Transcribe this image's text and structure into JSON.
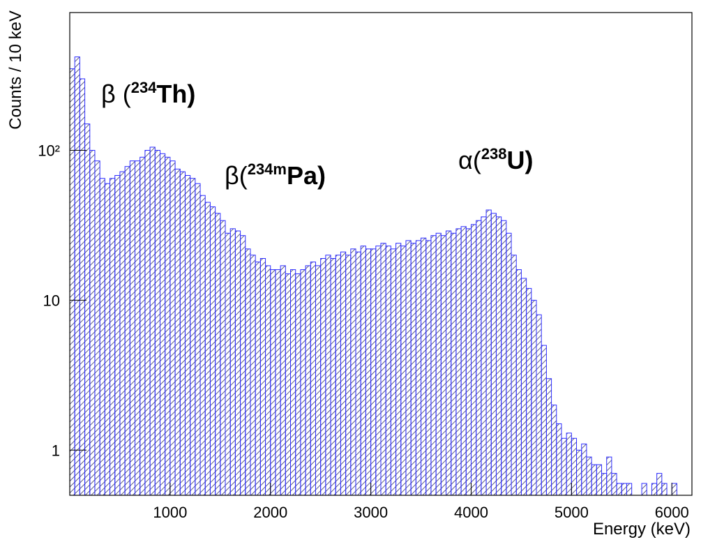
{
  "chart_data": {
    "type": "histogram",
    "xlabel": "Energy (keV)",
    "ylabel": "Counts / 10 keV",
    "log_y": true,
    "color": "#2b2bff",
    "hatch_color": "#333366",
    "xlim": [
      0,
      6200
    ],
    "ylim": [
      0.5,
      830
    ],
    "xticks": [
      1000,
      2000,
      3000,
      4000,
      5000,
      6000
    ],
    "yticks": [
      1,
      10,
      {
        "value": 100,
        "label": "10²"
      }
    ],
    "bins": [
      0,
      50,
      100,
      150,
      200,
      250,
      300,
      350,
      400,
      450,
      500,
      550,
      600,
      650,
      700,
      750,
      800,
      850,
      900,
      950,
      1000,
      1050,
      1100,
      1150,
      1200,
      1250,
      1300,
      1350,
      1400,
      1450,
      1500,
      1550,
      1600,
      1650,
      1700,
      1750,
      1800,
      1850,
      1900,
      1950,
      2000,
      2050,
      2100,
      2150,
      2200,
      2250,
      2300,
      2350,
      2400,
      2450,
      2500,
      2550,
      2600,
      2650,
      2700,
      2750,
      2800,
      2850,
      2900,
      2950,
      3000,
      3050,
      3100,
      3150,
      3200,
      3250,
      3300,
      3350,
      3400,
      3450,
      3500,
      3550,
      3600,
      3650,
      3700,
      3750,
      3800,
      3850,
      3900,
      3950,
      4000,
      4050,
      4100,
      4150,
      4200,
      4250,
      4300,
      4350,
      4400,
      4450,
      4500,
      4550,
      4600,
      4650,
      4700,
      4750,
      4800,
      4850,
      4900,
      4950,
      5000,
      5050,
      5100,
      5150,
      5200,
      5250,
      5300,
      5350,
      5400,
      5450,
      5500,
      5550,
      5600,
      5650,
      5700,
      5750,
      5800,
      5850,
      5900,
      5950,
      6000,
      6050,
      6100,
      6150,
      6200
    ],
    "values": [
      350,
      420,
      300,
      150,
      100,
      85,
      65,
      60,
      65,
      68,
      72,
      78,
      85,
      85,
      90,
      100,
      105,
      100,
      95,
      90,
      85,
      75,
      72,
      68,
      65,
      60,
      50,
      45,
      42,
      38,
      34,
      28,
      30,
      29,
      27,
      22,
      20,
      18,
      19,
      17,
      16,
      16,
      17,
      15,
      16,
      15,
      16,
      17,
      18,
      17,
      19,
      20,
      19,
      20,
      21,
      20,
      22,
      21,
      23,
      22,
      22,
      23,
      24,
      23,
      22,
      24,
      23,
      25,
      24,
      25,
      26,
      25,
      27,
      28,
      27,
      29,
      28,
      30,
      31,
      30,
      32,
      34,
      36,
      40,
      38,
      36,
      34,
      28,
      20,
      16,
      14,
      12,
      10,
      8,
      5,
      3,
      2,
      1.5,
      1.2,
      1.3,
      1.2,
      1,
      1.1,
      0.9,
      0.8,
      0.8,
      0.7,
      0.9,
      0.7,
      0.6,
      0.6,
      0.6,
      0.5,
      0.5,
      0.6,
      0.5,
      0.6,
      0.7,
      0.6,
      0.5,
      0.6,
      0,
      0,
      0
    ],
    "annotations": [
      {
        "pre": "β (",
        "sup": "234",
        "post": "Th)"
      },
      {
        "pre": "β(",
        "sup": "234m",
        "post": "Pa)"
      },
      {
        "pre": "α(",
        "sup": "238",
        "post": "U)"
      }
    ]
  }
}
